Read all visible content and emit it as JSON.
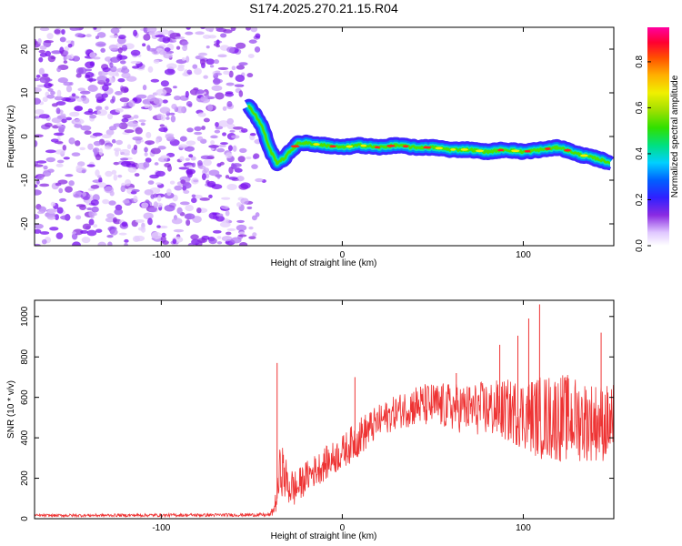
{
  "title": "S174.2025.270.21.15.R04",
  "chart_data": [
    {
      "type": "heatmap",
      "xlabel": "Height of straight line (km)",
      "ylabel": "Frequency (Hz)",
      "xlim": [
        -170,
        150
      ],
      "ylim": [
        -25,
        25
      ],
      "xticks": [
        -100,
        0,
        100
      ],
      "xtick_labels": [
        "-100",
        "0",
        "100"
      ],
      "yticks": [
        -20,
        -10,
        0,
        10,
        20
      ],
      "ytick_labels": [
        "-20",
        "-10",
        "0",
        "10",
        "20"
      ],
      "colorbar": {
        "label": "Normalized spectral amplitude",
        "range": [
          0.0,
          0.95
        ],
        "ticks": [
          0.0,
          0.2,
          0.4,
          0.6,
          0.8
        ],
        "tick_labels": [
          "0.0",
          "0.2",
          "0.4",
          "0.6",
          "0.8"
        ]
      },
      "ridge": {
        "x": [
          -52,
          -48,
          -44,
          -40,
          -36,
          -32,
          -28,
          -24,
          -20,
          -10,
          0,
          10,
          20,
          30,
          40,
          50,
          60,
          70,
          80,
          90,
          100,
          110,
          120,
          130,
          140,
          148
        ],
        "frequency": [
          7,
          5,
          2,
          -3,
          -6,
          -5,
          -3,
          -1.5,
          -1.5,
          -2,
          -2.5,
          -2,
          -2.5,
          -2,
          -2.5,
          -2.5,
          -3,
          -3,
          -3.5,
          -3,
          -3.5,
          -3,
          -2.5,
          -4,
          -5,
          -6
        ]
      },
      "noise_region_x": [
        -170,
        -55
      ]
    },
    {
      "type": "line",
      "xlabel": "Height of straight line (km)",
      "ylabel": "SNR (10 * v/v)",
      "xlim": [
        -170,
        150
      ],
      "ylim": [
        0,
        1080
      ],
      "xticks": [
        -100,
        0,
        100
      ],
      "xtick_labels": [
        "-100",
        "0",
        "100"
      ],
      "yticks": [
        0,
        200,
        400,
        600,
        800,
        1000
      ],
      "ytick_labels": [
        "0",
        "200",
        "400",
        "600",
        "800",
        "1000"
      ],
      "color": "#ee3333",
      "envelope": {
        "x": [
          -170,
          -40,
          -38,
          -36,
          -34,
          -30,
          -25,
          -20,
          -10,
          0,
          10,
          20,
          30,
          40,
          50,
          60,
          70,
          80,
          90,
          100,
          110,
          120,
          130,
          140,
          150
        ],
        "baseline": [
          15,
          18,
          40,
          100,
          250,
          150,
          140,
          200,
          260,
          320,
          400,
          470,
          520,
          550,
          550,
          540,
          530,
          530,
          520,
          500,
          480,
          480,
          470,
          460,
          450
        ],
        "spread": [
          10,
          12,
          40,
          100,
          200,
          150,
          130,
          110,
          120,
          120,
          140,
          120,
          120,
          150,
          160,
          170,
          180,
          200,
          220,
          250,
          300,
          320,
          300,
          280,
          280
        ]
      },
      "peaks": [
        {
          "x": 109,
          "y": 1060
        },
        {
          "x": 103,
          "y": 990
        },
        {
          "x": 143,
          "y": 920
        },
        {
          "x": 97,
          "y": 905
        },
        {
          "x": 87,
          "y": 860
        },
        {
          "x": -36,
          "y": 770
        },
        {
          "x": 63,
          "y": 720
        },
        {
          "x": 7,
          "y": 700
        }
      ]
    }
  ]
}
